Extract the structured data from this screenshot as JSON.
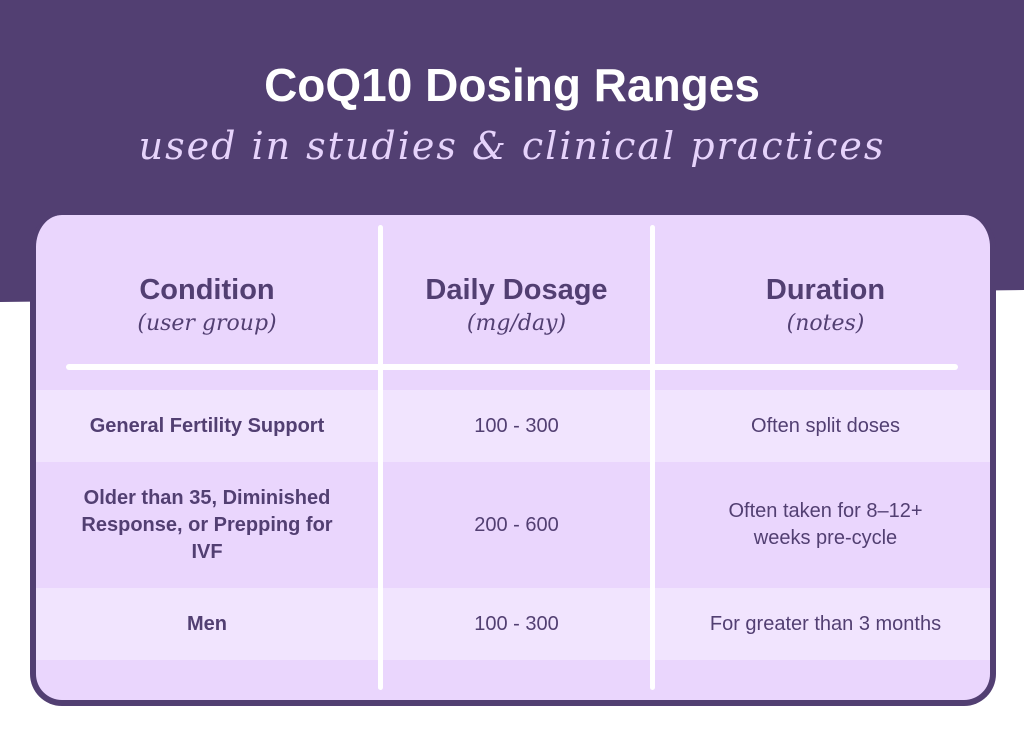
{
  "title": "CoQ10 Dosing Ranges",
  "subtitle": "used in studies & clinical practices",
  "colors": {
    "primary": "#523f72",
    "card": "#ead6fd",
    "row_light": "#f1e4fe"
  },
  "headers": [
    {
      "main": "Condition",
      "sub": "(user group)"
    },
    {
      "main": "Daily Dosage",
      "sub": "(mg/day)"
    },
    {
      "main": "Duration",
      "sub": "(notes)"
    }
  ],
  "rows": [
    {
      "condition": "General Fertility Support",
      "dosage": "100 - 300",
      "duration": "Often split doses"
    },
    {
      "condition": "Older than 35, Diminished Response, or Prepping for IVF",
      "dosage": "200 - 600",
      "duration": "Often taken for 8–12+ weeks pre-cycle"
    },
    {
      "condition": "Men",
      "dosage": "100 - 300",
      "duration": "For greater than 3 months"
    }
  ]
}
